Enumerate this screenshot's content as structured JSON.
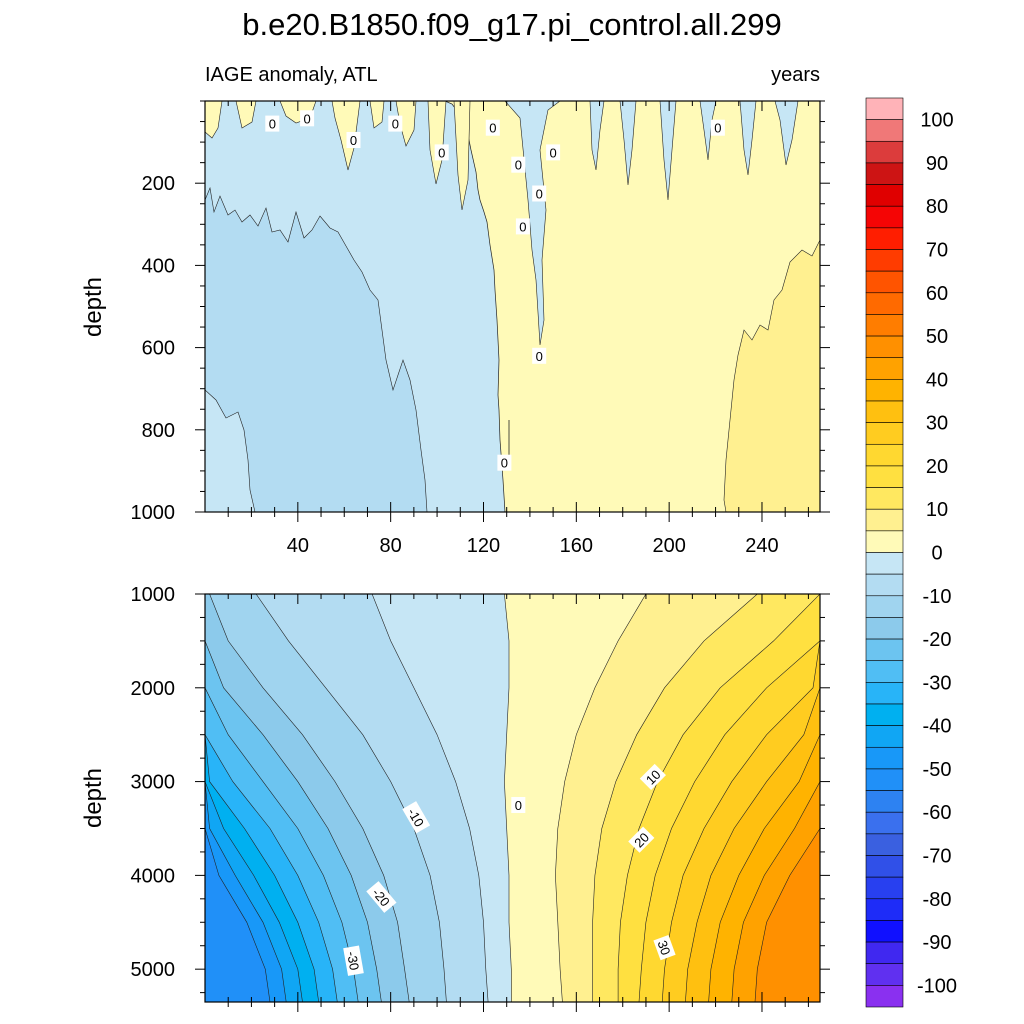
{
  "chart_data": {
    "type": "contour",
    "title": "b.e20.B1850.f09_g17.pi_control.all.299",
    "left_string": "IAGE anomaly, ATL",
    "right_string": "years",
    "x_ticks": [
      40,
      80,
      120,
      160,
      200,
      240
    ],
    "x_range": [
      0,
      265
    ],
    "zero_contour_x": 129,
    "panels": [
      {
        "name": "upper",
        "ylabel": "depth",
        "y_range": [
          0,
          1000
        ],
        "y_ticks": [
          200,
          400,
          600,
          800,
          1000
        ],
        "contour_labels": [
          {
            "text": "0",
            "x": 29,
            "y": 55
          },
          {
            "text": "0",
            "x": 44,
            "y": 42
          },
          {
            "text": "0",
            "x": 64,
            "y": 95
          },
          {
            "text": "0",
            "x": 82,
            "y": 55
          },
          {
            "text": "0",
            "x": 102,
            "y": 125
          },
          {
            "text": "0",
            "x": 124,
            "y": 65
          },
          {
            "text": "0",
            "x": 135,
            "y": 155
          },
          {
            "text": "0",
            "x": 150,
            "y": 125
          },
          {
            "text": "0",
            "x": 144,
            "y": 225
          },
          {
            "text": "0",
            "x": 137,
            "y": 305
          },
          {
            "text": "0",
            "x": 144,
            "y": 620
          },
          {
            "text": "0",
            "x": 129,
            "y": 880
          },
          {
            "text": "0",
            "x": 221,
            "y": 65
          }
        ]
      },
      {
        "name": "lower",
        "ylabel": "depth",
        "y_range": [
          1000,
          5350
        ],
        "y_ticks": [
          1000,
          2000,
          3000,
          4000,
          5000
        ],
        "contour_labels": [
          {
            "text": "-10",
            "x": 91,
            "y": 3380,
            "rot": 60
          },
          {
            "text": "-20",
            "x": 76,
            "y": 4230,
            "rot": 50
          },
          {
            "text": "-30",
            "x": 64,
            "y": 4910,
            "rot": 80
          },
          {
            "text": "0",
            "x": 135,
            "y": 3250,
            "rot": 0
          },
          {
            "text": "10",
            "x": 193,
            "y": 2950,
            "rot": -45
          },
          {
            "text": "20",
            "x": 188,
            "y": 3620,
            "rot": -45
          },
          {
            "text": "30",
            "x": 198,
            "y": 4770,
            "rot": 70
          }
        ]
      }
    ],
    "colorbar": {
      "labels": [
        "100",
        "90",
        "80",
        "70",
        "60",
        "50",
        "40",
        "30",
        "20",
        "10",
        "0",
        "-10",
        "-20",
        "-30",
        "-40",
        "-50",
        "-60",
        "-70",
        "-80",
        "-90",
        "-100"
      ],
      "colors": [
        "#ffb3b8",
        "#f07878",
        "#dc3c3c",
        "#cd1414",
        "#e00000",
        "#f50505",
        "#ff1e00",
        "#ff3c00",
        "#ff5400",
        "#ff6a00",
        "#ff7d00",
        "#ff9000",
        "#ffa200",
        "#ffb300",
        "#ffc010",
        "#ffcc20",
        "#ffd830",
        "#ffe040",
        "#ffe860",
        "#fff090",
        "#fffab8",
        "#c6e6f5",
        "#b3dcf2",
        "#a0d4ef",
        "#8ccaeb",
        "#6cc4f0",
        "#50bef4",
        "#28b4f8",
        "#00b0f0",
        "#10a6f4",
        "#1898f8",
        "#2090f8",
        "#2d82f2",
        "#3a70ee",
        "#3a60e0",
        "#3050e8",
        "#2840f0",
        "#1e2cf8",
        "#1010ff",
        "#4028f0",
        "#6030f0",
        "#8a30f0"
      ]
    },
    "fill_colors": {
      "neg": [
        "#c6e6f5",
        "#b3dcf2",
        "#a0d4ef",
        "#8ccaeb",
        "#6cc4f0",
        "#50bef4",
        "#28b4f8",
        "#00b0f0",
        "#10a6f4",
        "#1898f8",
        "#2090f8",
        "#2d82f2"
      ],
      "pos": [
        "#fffab8",
        "#fff090",
        "#ffe860",
        "#ffe040",
        "#ffd830",
        "#ffcc20",
        "#ffc010",
        "#ffb300",
        "#ffa200",
        "#ff9000",
        "#ff7d00",
        "#ff6a00",
        "#ff5400"
      ]
    }
  }
}
